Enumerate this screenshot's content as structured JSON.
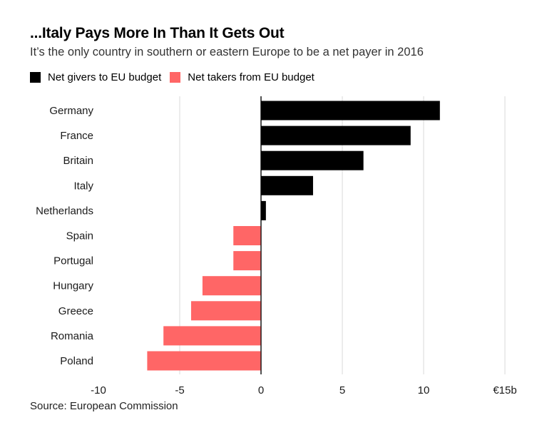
{
  "title": "...Italy Pays More In Than It Gets Out",
  "subtitle": "It’s the only country in southern or eastern Europe to be a net payer in 2016",
  "legend": {
    "givers_label": "Net givers to EU budget",
    "takers_label": "Net takers from EU budget",
    "givers_color": "#000000",
    "takers_color": "#ff6666"
  },
  "source": "Source: European Commission",
  "chart_data": {
    "type": "bar",
    "orientation": "horizontal",
    "title": "...Italy Pays More In Than It Gets Out",
    "subtitle": "It’s the only country in southern or eastern Europe to be a net payer in 2016",
    "categories": [
      "Germany",
      "France",
      "Britain",
      "Italy",
      "Netherlands",
      "Spain",
      "Portugal",
      "Hungary",
      "Greece",
      "Romania",
      "Poland"
    ],
    "values": [
      11.0,
      9.2,
      6.3,
      3.2,
      0.3,
      -1.7,
      -1.7,
      -3.6,
      -4.3,
      -6.0,
      -7.0
    ],
    "xlim": [
      -10,
      15
    ],
    "ticks": [
      -10,
      -5,
      0,
      5,
      10,
      15
    ],
    "tick_labels": [
      "-10",
      "-5",
      "0",
      "5",
      "10",
      "€15b"
    ],
    "xlabel": "",
    "ylabel": "",
    "grid": true,
    "legend_position": "top-left",
    "series": [
      {
        "name": "Net givers to EU budget",
        "color": "#000000"
      },
      {
        "name": "Net takers from EU budget",
        "color": "#ff6666"
      }
    ]
  }
}
